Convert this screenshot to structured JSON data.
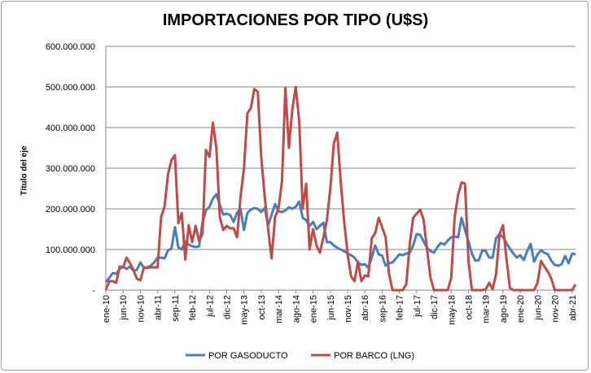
{
  "chart_data": {
    "type": "line",
    "title": "IMPORTACIONES POR TIPO (U$S)",
    "xlabel": "",
    "ylabel": "Título del eje",
    "ylim": [
      0,
      600000000
    ],
    "y_ticks": [
      0,
      100000000,
      200000000,
      300000000,
      400000000,
      500000000,
      600000000
    ],
    "y_tick_labels": [
      "-",
      "100.000.000",
      "200.000.000",
      "300.000.000",
      "400.000.000",
      "500.000.000",
      "600.000.000"
    ],
    "x_frequency": "monthly",
    "x_start": "ene-10",
    "x_end": "abr-21",
    "x_tick_step_months": 5,
    "x_tick_labels": [
      "ene-10",
      "jun-10",
      "nov-10",
      "abr-11",
      "sep-11",
      "feb-12",
      "jul-12",
      "dic-12",
      "may-13",
      "oct-13",
      "mar-14",
      "ago-14",
      "ene-15",
      "jun-15",
      "nov-15",
      "abr-16",
      "sep-16",
      "feb-17",
      "jul-17",
      "dic-17",
      "may-18",
      "oct-18",
      "mar-19",
      "ago-19",
      "ene-20",
      "jun-20",
      "nov-20",
      "abr-21"
    ],
    "value_unit_multiplier": 1000000,
    "grid": true,
    "legend_position": "bottom",
    "series": [
      {
        "name": "POR GASODUCTO",
        "color": "#4A7EBB",
        "values_millions": [
          20,
          30,
          42,
          40,
          52,
          58,
          52,
          58,
          48,
          50,
          68,
          55,
          56,
          60,
          68,
          80,
          80,
          78,
          98,
          102,
          155,
          105,
          100,
          120,
          112,
          108,
          106,
          108,
          168,
          196,
          205,
          225,
          236,
          210,
          186,
          188,
          185,
          168,
          190,
          200,
          148,
          190,
          198,
          202,
          200,
          192,
          202,
          160,
          185,
          212,
          194,
          192,
          196,
          204,
          200,
          205,
          218,
          178,
          172,
          158,
          168,
          150,
          158,
          166,
          118,
          118,
          110,
          104,
          100,
          96,
          90,
          86,
          80,
          68,
          62,
          64,
          55,
          80,
          110,
          88,
          85,
          60,
          66,
          68,
          78,
          88,
          86,
          90,
          92,
          110,
          138,
          136,
          120,
          104,
          96,
          92,
          106,
          116,
          112,
          122,
          130,
          132,
          130,
          178,
          148,
          120,
          90,
          72,
          74,
          98,
          96,
          80,
          80,
          128,
          138,
          130,
          116,
          102,
          90,
          80,
          86,
          74,
          96,
          114,
          70,
          88,
          98,
          92,
          88,
          72,
          62,
          60,
          64,
          84,
          66,
          90,
          88
        ]
      },
      {
        "name": "POR BARCO (LNG)",
        "color": "#BE4B48",
        "values_millions": [
          0,
          22,
          22,
          18,
          58,
          56,
          80,
          66,
          50,
          28,
          24,
          55,
          55,
          56,
          56,
          56,
          180,
          205,
          285,
          320,
          332,
          165,
          190,
          75,
          160,
          118,
          158,
          120,
          140,
          345,
          328,
          412,
          350,
          180,
          148,
          158,
          152,
          152,
          130,
          230,
          300,
          435,
          448,
          495,
          488,
          328,
          230,
          150,
          78,
          180,
          200,
          268,
          498,
          350,
          445,
          500,
          415,
          200,
          262,
          100,
          150,
          110,
          92,
          130,
          172,
          250,
          360,
          388,
          268,
          170,
          90,
          34,
          22,
          70,
          22,
          36,
          34,
          128,
          140,
          178,
          155,
          130,
          40,
          0,
          0,
          0,
          0,
          15,
          115,
          178,
          188,
          198,
          174,
          100,
          30,
          0,
          0,
          0,
          0,
          0,
          30,
          180,
          235,
          265,
          262,
          70,
          0,
          0,
          0,
          0,
          2,
          18,
          2,
          40,
          138,
          160,
          78,
          5,
          0,
          0,
          0,
          0,
          0,
          0,
          0,
          18,
          72,
          58,
          45,
          28,
          0,
          0,
          0,
          0,
          0,
          0,
          14
        ]
      }
    ]
  }
}
